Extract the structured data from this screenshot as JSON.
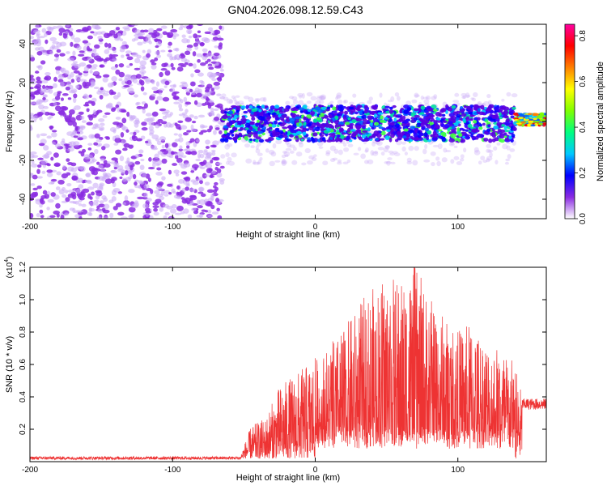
{
  "figure": {
    "title": "GN04.2026.098.12.59.C43"
  },
  "chart_data": [
    {
      "type": "heatmap",
      "title": "",
      "xlabel": "Height of straight line (km)",
      "ylabel": "Frequency (Hz)",
      "xlim": [
        -200,
        162
      ],
      "ylim": [
        -50,
        50
      ],
      "x_ticks": [
        -200,
        -100,
        0,
        100
      ],
      "x_tick_labels": [
        "-200",
        "-100",
        "0",
        "100"
      ],
      "y_ticks": [
        40,
        20,
        0,
        -20,
        -40
      ],
      "y_tick_labels": [
        "40",
        "20",
        "0",
        "-20",
        "-40"
      ],
      "grid": false,
      "colorbar": {
        "label": "Normalized spectral amplitude",
        "range": [
          0,
          0.85
        ],
        "ticks": [
          0.0,
          0.2,
          0.4,
          0.6,
          0.8
        ],
        "tick_labels": [
          "0.0",
          "0.2",
          "0.4",
          "0.6",
          "0.8"
        ],
        "colors": [
          "#ffffff",
          "#8a2be2",
          "#0000ff",
          "#00c8ff",
          "#00ff80",
          "#80ff00",
          "#ffff00",
          "#ff8000",
          "#ff0000",
          "#ff00a0"
        ]
      },
      "regions": [
        {
          "x_range": [
            -200,
            -65
          ],
          "freq_range": [
            -50,
            50
          ],
          "amplitude": "low-noise-uniform"
        },
        {
          "x_range": [
            -65,
            140
          ],
          "freq_range": [
            -10,
            8
          ],
          "amplitude": "high-band"
        },
        {
          "x_range": [
            140,
            162
          ],
          "freq_range": [
            -2,
            4
          ],
          "amplitude": "peak",
          "max_amplitude": 0.8
        }
      ],
      "colors": {
        "noise": "#8a2be2",
        "band_peak": "#ff0000"
      }
    },
    {
      "type": "line",
      "title": "",
      "xlabel": "Height of straight line (km)",
      "ylabel": "SNR (10 * v/v)",
      "y_multiplier_label": "(x10",
      "y_multiplier_exp": "4",
      "y_multiplier_close": ")",
      "xlim": [
        -200,
        162
      ],
      "ylim": [
        0,
        1.2
      ],
      "x_ticks": [
        -200,
        -100,
        0,
        100
      ],
      "x_tick_labels": [
        "-200",
        "-100",
        "0",
        "100"
      ],
      "y_ticks": [
        0.2,
        0.4,
        0.6,
        0.8,
        1.0,
        1.2
      ],
      "y_tick_labels": [
        "0.2",
        "0.4",
        "0.6",
        "0.8",
        "1.0",
        "1.2"
      ],
      "grid": false,
      "series": [
        {
          "color": "#ee3333",
          "segments": [
            {
              "x_range": [
                -200,
                -52
              ],
              "mean": 0.02,
              "peak": 0.03
            },
            {
              "x_range": [
                -52,
                -30
              ],
              "mean": 0.08,
              "peak": 0.25
            },
            {
              "x_range": [
                -30,
                0
              ],
              "mean": 0.2,
              "peak": 0.55
            },
            {
              "x_range": [
                0,
                140
              ],
              "mean": 0.35,
              "peak": 1.2
            },
            {
              "x_range": [
                140,
                162
              ],
              "mean": 0.36,
              "peak": 0.4
            }
          ],
          "envelope_x": [
            -200,
            -52,
            -45,
            -35,
            -25,
            -10,
            0,
            10,
            20,
            30,
            40,
            50,
            60,
            70,
            80,
            90,
            100,
            110,
            120,
            130,
            140,
            145,
            162
          ],
          "envelope_y": [
            0.03,
            0.03,
            0.2,
            0.25,
            0.45,
            0.55,
            0.62,
            0.7,
            0.8,
            0.95,
            1.05,
            1.15,
            1.1,
            1.2,
            1.0,
            0.9,
            0.8,
            0.85,
            0.75,
            0.7,
            0.6,
            0.4,
            0.4
          ]
        }
      ]
    }
  ]
}
